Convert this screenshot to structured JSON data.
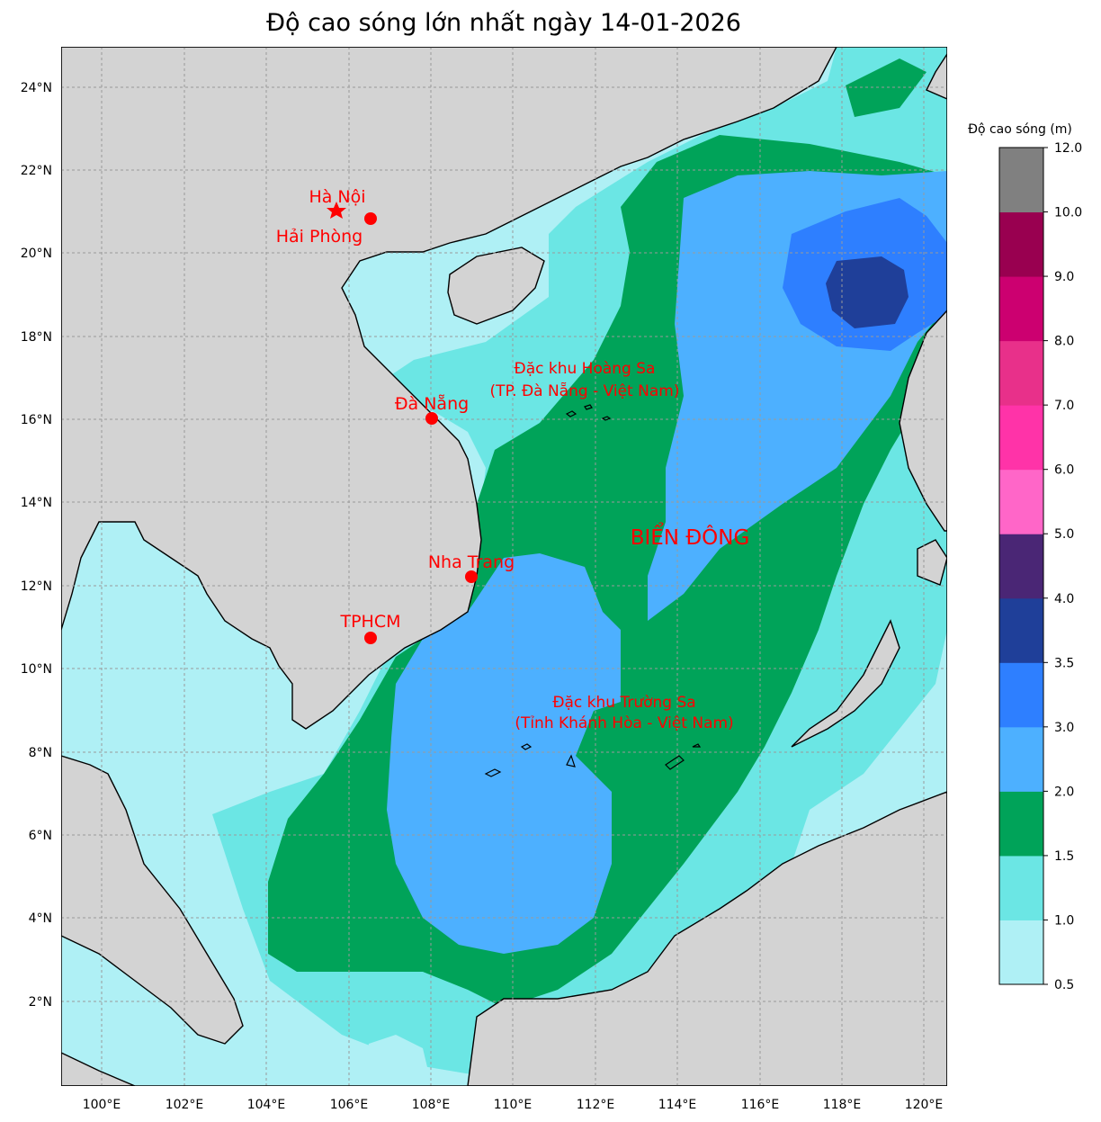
{
  "title": "Độ cao sóng lớn nhất ngày 14-01-2026",
  "colorbar": {
    "title": "Độ cao sóng (m)",
    "bins": [
      {
        "from": 0.5,
        "to": 1.0,
        "color": "#aff0f5"
      },
      {
        "from": 1.0,
        "to": 1.5,
        "color": "#6be6e4"
      },
      {
        "from": 1.5,
        "to": 2.0,
        "color": "#00a359"
      },
      {
        "from": 2.0,
        "to": 3.0,
        "color": "#4db0ff"
      },
      {
        "from": 3.0,
        "to": 3.5,
        "color": "#2e7fff"
      },
      {
        "from": 3.5,
        "to": 4.0,
        "color": "#1f3f99"
      },
      {
        "from": 4.0,
        "to": 5.0,
        "color": "#4a2675"
      },
      {
        "from": 5.0,
        "to": 6.0,
        "color": "#ff66c8"
      },
      {
        "from": 6.0,
        "to": 7.0,
        "color": "#ff33a8"
      },
      {
        "from": 7.0,
        "to": 8.0,
        "color": "#e8308a"
      },
      {
        "from": 8.0,
        "to": 9.0,
        "color": "#cc0070"
      },
      {
        "from": 9.0,
        "to": 10.0,
        "color": "#990050"
      },
      {
        "from": 10.0,
        "to": 12.0,
        "color": "#808080"
      }
    ],
    "tick_labels": [
      "0.5",
      "1.0",
      "1.5",
      "2.0",
      "3.0",
      "3.5",
      "4.0",
      "5.0",
      "6.0",
      "7.0",
      "8.0",
      "9.0",
      "10.0",
      "12.0"
    ]
  },
  "axes": {
    "lon_labels": [
      "100°E",
      "102°E",
      "104°E",
      "106°E",
      "108°E",
      "110°E",
      "112°E",
      "114°E",
      "116°E",
      "118°E",
      "120°E"
    ],
    "lat_labels": [
      "24°N",
      "22°N",
      "20°N",
      "18°N",
      "16°N",
      "14°N",
      "12°N",
      "10°N",
      "8°N",
      "6°N",
      "4°N",
      "2°N"
    ]
  },
  "cities": [
    {
      "name": "Hà Nội",
      "marker": "star"
    },
    {
      "name": "Hải Phòng",
      "marker": "dot"
    },
    {
      "name": "Đà Nẵng",
      "marker": "dot"
    },
    {
      "name": "Nha Trang",
      "marker": "dot"
    },
    {
      "name": "TPHCM",
      "marker": "dot"
    }
  ],
  "annotations": {
    "hoang_sa_1": "Đặc khu Hoàng Sa",
    "hoang_sa_2": "(TP. Đà Nẵng - Việt Nam)",
    "truong_sa_1": "Đặc khu Trường Sa",
    "truong_sa_2": "(Tỉnh Khánh Hòa - Việt Nam)",
    "sea_name": "BIỂN ĐÔNG"
  },
  "colors": {
    "land": "#d3d3d3",
    "marker": "#ff0000",
    "grid": "#9a9a9a"
  }
}
